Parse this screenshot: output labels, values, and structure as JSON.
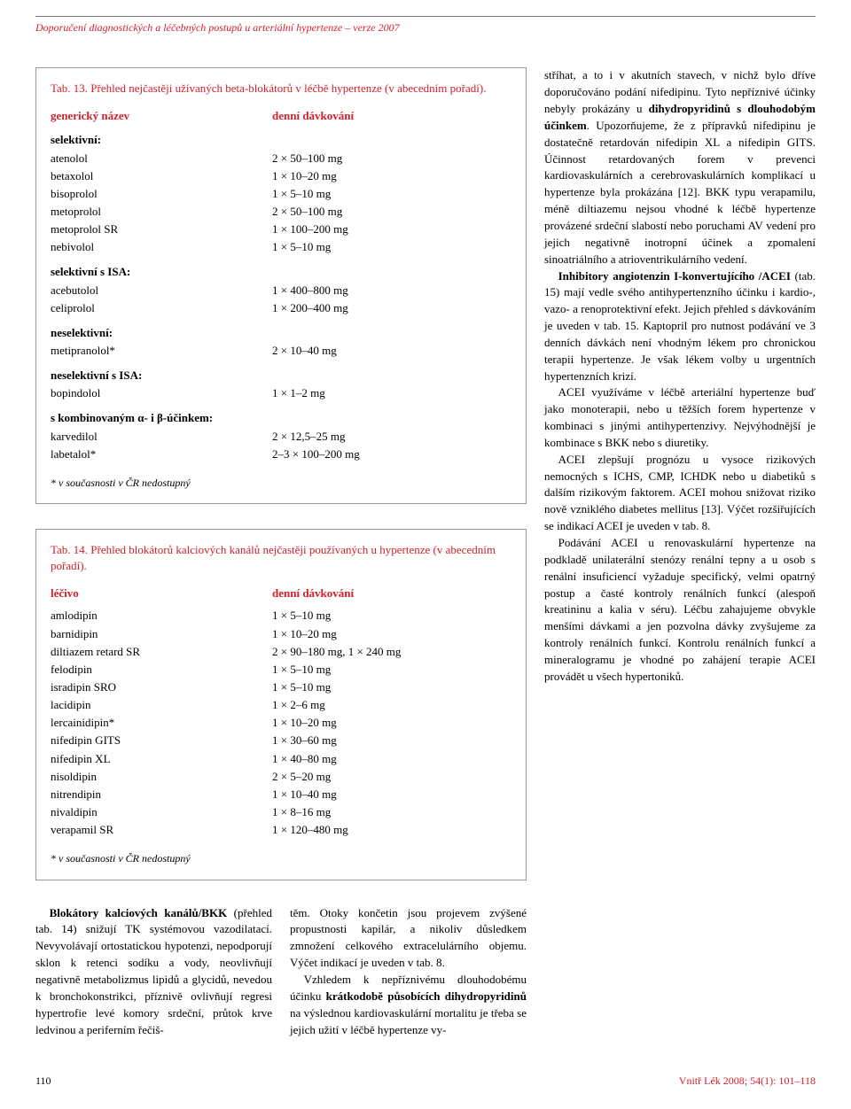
{
  "header": {
    "title": "Doporučení diagnostických a léčebných postupů u arteriální hypertenze – verze 2007"
  },
  "table13": {
    "title": "Tab. 13. Přehled nejčastěji užívaných beta-blokátorů v léčbě hypertenze (v abecedním pořadí).",
    "head_c1": "generický název",
    "head_c2": "denní dávkování",
    "group1": "selektivní:",
    "r1_c1": "atenolol",
    "r1_c2": "2 × 50–100 mg",
    "r2_c1": "betaxolol",
    "r2_c2": "1 × 10–20 mg",
    "r3_c1": "bisoprolol",
    "r3_c2": "1 × 5–10 mg",
    "r4_c1": "metoprolol",
    "r4_c2": "2 × 50–100 mg",
    "r5_c1": "metoprolol SR",
    "r5_c2": "1 × 100–200 mg",
    "r6_c1": "nebivolol",
    "r6_c2": "1 × 5–10 mg",
    "group2": "selektivní s ISA:",
    "r7_c1": "acebutolol",
    "r7_c2": "1 × 400–800 mg",
    "r8_c1": "celiprolol",
    "r8_c2": "1 × 200–400 mg",
    "group3": "neselektivní:",
    "r9_c1": "metipranolol*",
    "r9_c2": "2 × 10–40 mg",
    "group4": "neselektivní s ISA:",
    "r10_c1": "bopindolol",
    "r10_c2": "1 × 1–2 mg",
    "group5": "s kombinovaným α- i β-účinkem:",
    "r11_c1": "karvedilol",
    "r11_c2": "2 × 12,5–25 mg",
    "r12_c1": "labetalol*",
    "r12_c2": "2–3 × 100–200 mg",
    "footnote": "* v současnosti v ČR nedostupný"
  },
  "table14": {
    "title": "Tab. 14. Přehled blokátorů kalciových kanálů nejčastěji používaných u hypertenze (v abecedním pořadí).",
    "head_c1": "léčivo",
    "head_c2": "denní dávkování",
    "r1_c1": "amlodipin",
    "r1_c2": "1 × 5–10 mg",
    "r2_c1": "barnidipin",
    "r2_c2": "1 × 10–20 mg",
    "r3_c1": "diltiazem retard SR",
    "r3_c2": "2 × 90–180 mg, 1 × 240 mg",
    "r4_c1": "felodipin",
    "r4_c2": "1 × 5–10 mg",
    "r5_c1": "isradipin SRO",
    "r5_c2": "1 × 5–10 mg",
    "r6_c1": "lacidipin",
    "r6_c2": "1 × 2–6 mg",
    "r7_c1": "lercainidipin*",
    "r7_c2": "1 × 10–20 mg",
    "r8_c1": "nifedipin GITS",
    "r8_c2": "1 × 30–60 mg",
    "r9_c1": "nifedipin XL",
    "r9_c2": "1 × 40–80 mg",
    "r10_c1": "nisoldipin",
    "r10_c2": "2 × 5–20 mg",
    "r11_c1": "nitrendipin",
    "r11_c2": "1 × 10–40 mg",
    "r12_c1": "nivaldipin",
    "r12_c2": "1 × 8–16 mg",
    "r13_c1": "verapamil SR",
    "r13_c2": "1 × 120–480 mg",
    "footnote": "* v současnosti v ČR nedostupný"
  },
  "lower": {
    "left_bold": "Blokátory kalciových kanálů/BKK",
    "left_rest": " (přehled tab. 14) snižují TK systémovou vazodilatací. Nevyvolávají ortostatickou hypotenzi, nepodporují sklon k retenci sodíku a vody, neovlivňují negativně metabolizmus lipidů a glycidů, nevedou k bronchokonstrikci, příznivě ovlivňují regresi hypertrofie levé komory srdeční, průtok krve ledvinou a periferním řečiš-",
    "right_p1": "těm. Otoky končetin jsou projevem zvýšené propustnosti kapilár, a nikoliv důsledkem zmnožení celkového extracelulárního objemu. Výčet indikací je uveden v tab. 8.",
    "right_p2a": "Vzhledem k nepříznivému dlouhodobému účinku ",
    "right_p2_bold": "krátkodobě působících dihydropyridinů",
    "right_p2b": " na výslednou kardiovaskulární mortalitu je třeba se jejich užití v léčbě hypertenze vy-"
  },
  "right": {
    "p1a": "stříhat, a to i v akutních stavech, v nichž bylo dříve doporučováno podání nifedipinu. Tyto nepříznivé účinky nebyly prokázány u ",
    "p1_bold1": "dihydropyridinů s dlouhodobým účinkem",
    "p1b": ". Upozorňujeme, že z přípravků nifedipinu je dostatečně retardován nifedipin XL a nifedipin GITS. Účinnost retardovaných forem v prevenci kardiovaskulárních a cerebrovaskulárních komplikací u hypertenze byla prokázána [12]. BKK typu verapamilu, méně diltiazemu nejsou vhodné k léčbě hypertenze provázené srdeční slabostí nebo poruchami AV vedení pro jejich negativně inotropní účinek a zpomalení sinoatriálního a atrioventrikulárního vedení.",
    "p2_bold": "Inhibitory angiotenzin I-konvertujícího /ACEI",
    "p2a": " (tab. 15) mají vedle svého antihypertenzního účinku i kardio-, vazo- a renoprotektivní efekt. Jejich přehled s dávkováním je uveden v tab. 15. Kaptopril pro nutnost podávání ve 3 denních dávkách není vhodným lékem pro chronickou terapii hypertenze. Je však lékem volby u urgentních hypertenzních krizí.",
    "p3": "ACEI využíváme v léčbě arteriální hypertenze buď jako monoterapii, nebo u těžších forem hypertenze v kombinaci s jinými antihypertenzivy. Nejvýhodnější je kombinace s BKK nebo s diuretiky.",
    "p4": "ACEI zlepšují prognózu u vysoce rizikových nemocných s ICHS, CMP, ICHDK nebo u diabetiků s dalším rizikovým faktorem. ACEI mohou snižovat riziko nově vzniklého diabetes mellitus [13]. Výčet rozšiřujících se indikací ACEI je uveden v tab. 8.",
    "p5": "Podávání ACEI u renovaskulární hypertenze na podkladě unilaterální stenózy renální tepny a u osob s renální insuficiencí vyžaduje specifický, velmi opatrný postup a časté kontroly renálních funkcí (alespoň kreatininu a kalia v séru). Léčbu zahajujeme obvykle menšími dávkami a jen pozvolna dávky zvyšujeme za kontroly renálních funkcí. Kontrolu renálních funkcí a mineralogramu je vhodné po zahájení terapie ACEI provádět u všech hypertoniků."
  },
  "footer": {
    "page": "110",
    "journal": "Vnitř Lék 2008; 54(1): 101–118"
  }
}
